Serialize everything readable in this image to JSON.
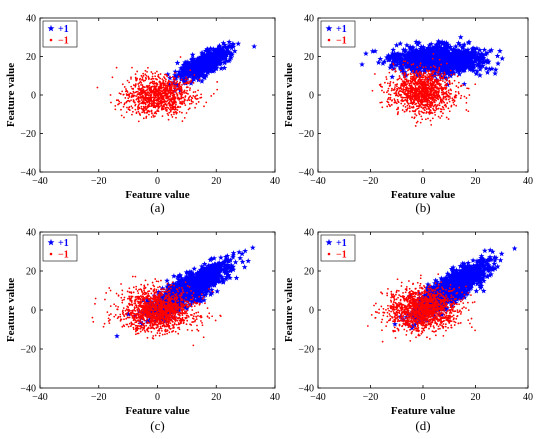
{
  "colors": {
    "positive": "#0000ff",
    "negative": "#ff0000",
    "axis": "#000000"
  },
  "chart_data": [
    {
      "type": "scatter",
      "caption": "(a)",
      "xlabel": "Feature value",
      "ylabel": "Feature value",
      "xlim": [
        -40,
        40
      ],
      "ylim": [
        -40,
        40
      ],
      "x_ticks": [
        "−40",
        "−20",
        "0",
        "20",
        "40"
      ],
      "y_ticks": [
        "40",
        "20",
        "0",
        "−20",
        "−40"
      ],
      "grid": false,
      "legend_position": "top-left",
      "series": [
        {
          "name": "+1",
          "marker": "star",
          "color": "#0000ff",
          "distribution": {
            "count": 650,
            "center": [
              16,
              16
            ],
            "spread_major": 5.5,
            "spread_minor": 2.2,
            "direction": [
              1,
              1
            ]
          }
        },
        {
          "name": "−1",
          "marker": "dot",
          "color": "#ff0000",
          "distribution": {
            "count": 1100,
            "center": [
              0,
              0
            ],
            "spread_major": 6,
            "spread_minor": 5,
            "direction": [
              1,
              0
            ]
          }
        }
      ]
    },
    {
      "type": "scatter",
      "caption": "(b)",
      "xlabel": "Feature value",
      "ylabel": "Feature value",
      "xlim": [
        -40,
        40
      ],
      "ylim": [
        -40,
        40
      ],
      "x_ticks": [
        "−40",
        "−20",
        "0",
        "20",
        "40"
      ],
      "y_ticks": [
        "40",
        "20",
        "0",
        "−20",
        "−40"
      ],
      "grid": false,
      "legend_position": "top-left",
      "series": [
        {
          "name": "+1",
          "marker": "star",
          "color": "#0000ff",
          "distribution": {
            "count": 1300,
            "center": [
              6,
              18
            ],
            "spread_major": 8,
            "spread_minor": 3.5,
            "direction": [
              1,
              0
            ]
          }
        },
        {
          "name": "−1",
          "marker": "dot",
          "color": "#ff0000",
          "distribution": {
            "count": 1300,
            "center": [
              0,
              2
            ],
            "spread_major": 6,
            "spread_minor": 5.5,
            "direction": [
              1,
              0
            ]
          }
        }
      ]
    },
    {
      "type": "scatter",
      "caption": "(c)",
      "xlabel": "Feature value",
      "ylabel": "Feature value",
      "xlim": [
        -40,
        40
      ],
      "ylim": [
        -40,
        40
      ],
      "x_ticks": [
        "−40",
        "−20",
        "0",
        "20",
        "40"
      ],
      "y_ticks": [
        "40",
        "20",
        "0",
        "−20",
        "−40"
      ],
      "grid": false,
      "legend_position": "top-left",
      "series": [
        {
          "name": "+1",
          "marker": "star",
          "color": "#0000ff",
          "distribution": {
            "count": 1400,
            "center": [
              11,
              11
            ],
            "spread_major": 9,
            "spread_minor": 2.6,
            "direction": [
              1,
              1
            ]
          }
        },
        {
          "name": "−1",
          "marker": "dot",
          "color": "#ff0000",
          "distribution": {
            "count": 1500,
            "center": [
              0,
              0
            ],
            "spread_major": 6.5,
            "spread_minor": 5.5,
            "direction": [
              1,
              0
            ]
          }
        }
      ]
    },
    {
      "type": "scatter",
      "caption": "(d)",
      "xlabel": "Feature value",
      "ylabel": "Feature value",
      "xlim": [
        -40,
        40
      ],
      "ylim": [
        -40,
        40
      ],
      "x_ticks": [
        "−40",
        "−20",
        "0",
        "20",
        "40"
      ],
      "y_ticks": [
        "40",
        "20",
        "0",
        "−20",
        "−40"
      ],
      "grid": false,
      "legend_position": "top-left",
      "series": [
        {
          "name": "+1",
          "marker": "star",
          "color": "#0000ff",
          "distribution": {
            "count": 1400,
            "center": [
              11,
              11
            ],
            "spread_major": 9,
            "spread_minor": 2.6,
            "direction": [
              1,
              1
            ]
          }
        },
        {
          "name": "−1",
          "marker": "dot",
          "color": "#ff0000",
          "distribution": {
            "count": 1500,
            "center": [
              0,
              0
            ],
            "spread_major": 6.5,
            "spread_minor": 5.5,
            "direction": [
              1,
              0
            ]
          }
        }
      ]
    }
  ]
}
